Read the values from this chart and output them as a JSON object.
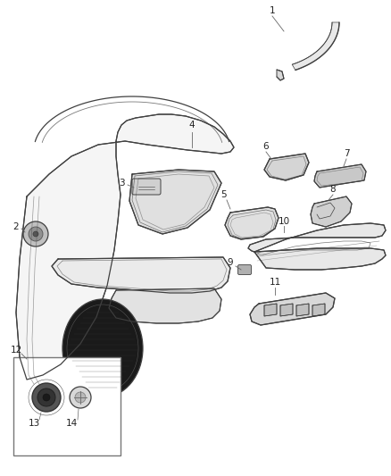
{
  "bg_color": "#ffffff",
  "line_color": "#404040",
  "label_color": "#222222",
  "fig_width": 4.38,
  "fig_height": 5.33,
  "dpi": 100
}
